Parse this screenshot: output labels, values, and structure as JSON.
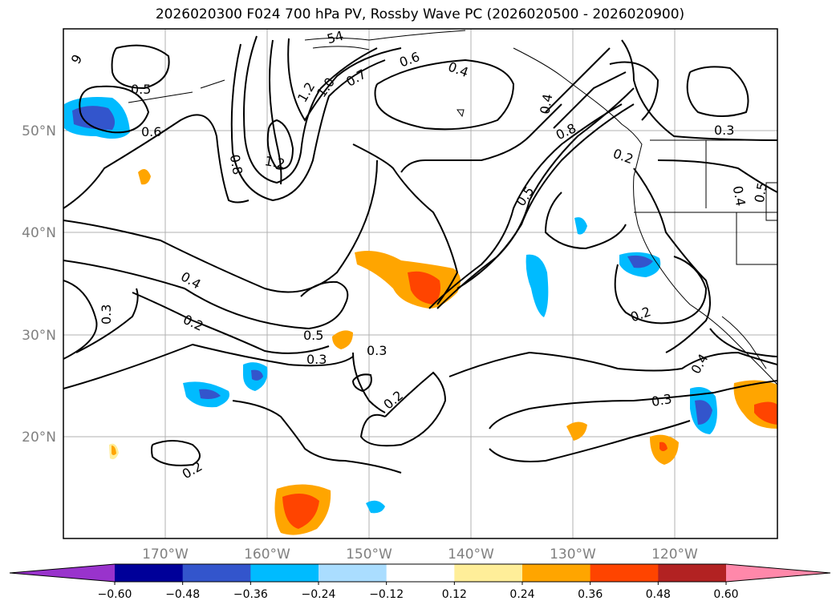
{
  "title": "2026020300 F024 700 hPa PV, Rossby Wave PC (2026020500 - 2026020900)",
  "map": {
    "lat_ticks": [
      "50°N",
      "40°N",
      "30°N",
      "20°N"
    ],
    "lon_ticks": [
      "170°W",
      "160°W",
      "150°W",
      "140°W",
      "130°W",
      "120°W"
    ],
    "contour_labels": [
      "0.5",
      "0.6",
      "1.2",
      "1.0",
      "0.7",
      "0.6",
      "0.4",
      "0.8",
      "1.2",
      "0.8",
      "0.2",
      "0.5",
      "0.3",
      "0.4",
      "0.5",
      "0.4",
      "0.2",
      "0.3",
      "0.5",
      "0.3",
      "0.3",
      "0.2",
      "0.2",
      "0.2",
      "0.3",
      "0.4",
      "54",
      "9",
      "0.4"
    ]
  },
  "colorbar": {
    "ticks": [
      "−0.60",
      "−0.48",
      "−0.36",
      "−0.24",
      "−0.12",
      "0.12",
      "0.24",
      "0.36",
      "0.48",
      "0.60"
    ],
    "colors": [
      "#9933cc",
      "#000099",
      "#3355cc",
      "#00bbff",
      "#aaddff",
      "#ffffff",
      "#ffee99",
      "#ffa500",
      "#ff4400",
      "#b22222",
      "#ff88aa"
    ]
  }
}
